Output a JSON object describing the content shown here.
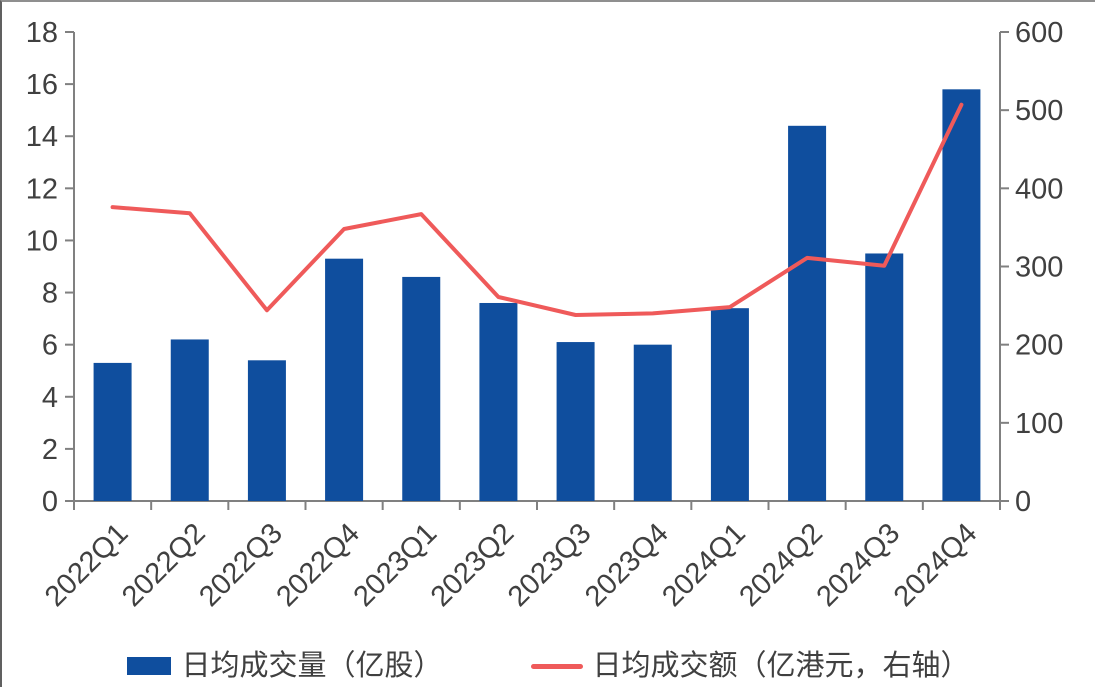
{
  "chart_data": {
    "type": "combo",
    "categories": [
      "2022Q1",
      "2022Q2",
      "2022Q3",
      "2022Q4",
      "2023Q1",
      "2023Q2",
      "2023Q3",
      "2023Q4",
      "2024Q1",
      "2024Q2",
      "2024Q3",
      "2024Q4"
    ],
    "series": [
      {
        "name": "日均成交量（亿股）",
        "type": "bar",
        "axis": "left",
        "color": "#0F4E9E",
        "values": [
          5.3,
          6.2,
          5.4,
          9.3,
          8.6,
          7.6,
          6.1,
          6.0,
          7.4,
          14.4,
          9.5,
          15.8
        ]
      },
      {
        "name": "日均成交额（亿港元，右轴）",
        "type": "line",
        "axis": "right",
        "color": "#EF5A5A",
        "values": [
          376,
          368,
          244,
          348,
          367,
          261,
          238,
          240,
          248,
          311,
          301,
          507
        ]
      }
    ],
    "left_axis": {
      "min": 0,
      "max": 18,
      "step": 2,
      "tick_labels": [
        "0",
        "2",
        "4",
        "6",
        "8",
        "10",
        "12",
        "14",
        "16",
        "18"
      ]
    },
    "right_axis": {
      "min": 0,
      "max": 600,
      "step": 100,
      "tick_labels": [
        "0",
        "100",
        "200",
        "300",
        "400",
        "500",
        "600"
      ]
    },
    "legend_position": "bottom",
    "grid": false
  },
  "colors": {
    "bar": "#0F4E9E",
    "line": "#EF5A5A",
    "axis": "#808080",
    "text": "#404040"
  }
}
